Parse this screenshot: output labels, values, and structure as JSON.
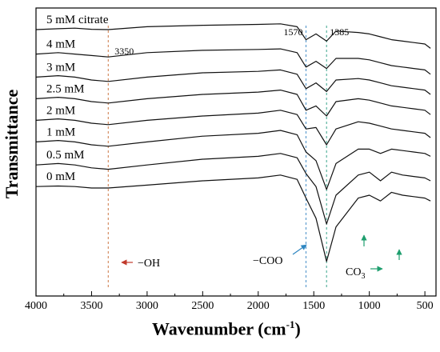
{
  "chart_data": {
    "type": "line",
    "xlabel": "Wavenumber (cm",
    "xlabel_exponent": "-1",
    "xlabel_close": ")",
    "ylabel": "Transmittance",
    "xlim": [
      4000,
      400
    ],
    "x_reversed": true,
    "x_ticks": [
      4000,
      3500,
      3000,
      2500,
      2000,
      1500,
      1000,
      500
    ],
    "grid": false,
    "series": [
      {
        "name": "5 mM citrate",
        "x": [
          4000,
          3800,
          3650,
          3500,
          3350,
          3000,
          2500,
          2000,
          1800,
          1650,
          1570,
          1480,
          1385,
          1300,
          1100,
          1000,
          900,
          800,
          700,
          600,
          500,
          450
        ],
        "y": [
          92.5,
          92.8,
          93.0,
          92.6,
          92.5,
          93.5,
          94.0,
          94.3,
          94.5,
          93.5,
          89.0,
          91.0,
          88.5,
          92.0,
          91.5,
          91.0,
          90.0,
          89.0,
          88.5,
          88.0,
          87.5,
          86.0
        ]
      },
      {
        "name": "4 mM",
        "x": [
          4000,
          3800,
          3650,
          3500,
          3350,
          3000,
          2500,
          2000,
          1800,
          1650,
          1570,
          1480,
          1385,
          1300,
          1100,
          1000,
          900,
          800,
          700,
          600,
          500,
          450
        ],
        "y": [
          84.0,
          84.5,
          84.0,
          83.5,
          83.0,
          84.5,
          85.3,
          85.6,
          85.8,
          84.5,
          79.5,
          81.5,
          79.0,
          82.5,
          82.5,
          82.0,
          81.0,
          80.0,
          79.5,
          79.0,
          78.5,
          77.0
        ]
      },
      {
        "name": "3 mM",
        "x": [
          4000,
          3800,
          3650,
          3500,
          3350,
          3000,
          2500,
          2000,
          1800,
          1650,
          1570,
          1480,
          1385,
          1300,
          1100,
          1000,
          900,
          800,
          700,
          600,
          500,
          450
        ],
        "y": [
          76.0,
          76.5,
          76.0,
          75.0,
          74.5,
          76.0,
          77.5,
          78.0,
          78.5,
          77.0,
          72.0,
          74.0,
          71.0,
          75.0,
          75.5,
          75.0,
          74.0,
          73.0,
          72.5,
          72.0,
          71.5,
          70.0
        ]
      },
      {
        "name": "2.5 mM",
        "x": [
          4000,
          3800,
          3650,
          3500,
          3350,
          3000,
          2500,
          2000,
          1800,
          1650,
          1570,
          1480,
          1385,
          1300,
          1100,
          1000,
          900,
          800,
          700,
          600,
          500,
          450
        ],
        "y": [
          68.5,
          69.0,
          68.5,
          67.5,
          67.0,
          68.5,
          70.0,
          70.8,
          71.5,
          70.0,
          64.5,
          66.0,
          62.5,
          67.5,
          68.5,
          68.0,
          67.0,
          66.0,
          65.5,
          65.0,
          64.5,
          63.0
        ]
      },
      {
        "name": "2 mM",
        "x": [
          4000,
          3800,
          3650,
          3500,
          3350,
          3000,
          2500,
          2000,
          1800,
          1650,
          1570,
          1480,
          1385,
          1300,
          1100,
          1000,
          900,
          800,
          700,
          600,
          500,
          450
        ],
        "y": [
          61.0,
          61.5,
          61.0,
          60.0,
          59.5,
          61.0,
          62.5,
          63.5,
          64.5,
          63.0,
          58.0,
          58.5,
          52.5,
          58.0,
          60.5,
          60.0,
          59.0,
          58.0,
          57.5,
          57.0,
          56.5,
          55.0
        ]
      },
      {
        "name": "1 mM",
        "x": [
          4000,
          3800,
          3650,
          3500,
          3350,
          3000,
          2500,
          2000,
          1800,
          1650,
          1570,
          1480,
          1385,
          1300,
          1100,
          1000,
          900,
          800,
          700,
          600,
          500,
          450
        ],
        "y": [
          53.5,
          54.0,
          53.5,
          52.5,
          52.0,
          53.5,
          55.5,
          56.5,
          57.5,
          56.0,
          50.0,
          47.0,
          37.0,
          46.0,
          51.0,
          51.0,
          49.5,
          51.0,
          50.5,
          50.0,
          49.5,
          48.5
        ]
      },
      {
        "name": "0.5 mM",
        "x": [
          4000,
          3800,
          3650,
          3500,
          3350,
          3000,
          2500,
          2000,
          1800,
          1650,
          1570,
          1480,
          1385,
          1300,
          1100,
          1000,
          900,
          800,
          700,
          600,
          500,
          450
        ],
        "y": [
          45.5,
          46.0,
          45.5,
          44.5,
          44.0,
          45.5,
          47.5,
          48.5,
          49.5,
          48.0,
          42.5,
          38.0,
          25.0,
          35.0,
          42.0,
          43.0,
          40.0,
          43.0,
          42.0,
          41.5,
          41.0,
          40.0
        ]
      },
      {
        "name": "0 mM",
        "x": [
          4000,
          3800,
          3650,
          3500,
          3350,
          3000,
          2500,
          2000,
          1800,
          1650,
          1570,
          1480,
          1385,
          1300,
          1100,
          1000,
          900,
          800,
          700,
          600,
          500,
          450
        ],
        "y": [
          38.0,
          38.2,
          38.0,
          37.5,
          37.5,
          38.5,
          40.0,
          41.0,
          42.0,
          40.5,
          34.0,
          27.0,
          12.0,
          24.0,
          34.0,
          35.0,
          33.0,
          36.0,
          35.0,
          34.5,
          34.0,
          33.0
        ]
      }
    ],
    "reference_lines": [
      {
        "x": 3350,
        "label": "3350",
        "color": "#cc7744"
      },
      {
        "x": 1570,
        "label": "1570",
        "color": "#4a90c8"
      },
      {
        "x": 1385,
        "label": "1385",
        "color": "#3aa58c"
      }
    ],
    "annotations": [
      {
        "text": "−OH",
        "arrow_color": "#c0392b"
      },
      {
        "text": "−COO",
        "arrow_color": "#2e86c1"
      },
      {
        "text": "CO",
        "subscript": "3",
        "arrow_color": "#1e9e6e"
      }
    ]
  }
}
